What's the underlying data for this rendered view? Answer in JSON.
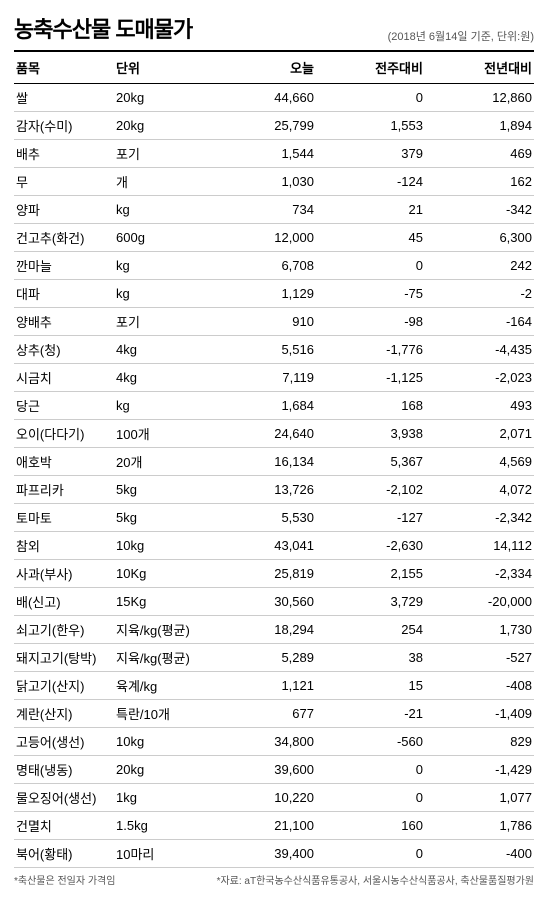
{
  "title": "농축수산물 도매물가",
  "meta": "(2018년 6월14일 기준, 단위:원)",
  "columns": [
    "품목",
    "단위",
    "오늘",
    "전주대비",
    "전년대비"
  ],
  "rows": [
    {
      "item": "쌀",
      "unit": "20kg",
      "today": "44,660",
      "week": "0",
      "year": "12,860"
    },
    {
      "item": "감자(수미)",
      "unit": "20kg",
      "today": "25,799",
      "week": "1,553",
      "year": "1,894"
    },
    {
      "item": "배추",
      "unit": "포기",
      "today": "1,544",
      "week": "379",
      "year": "469"
    },
    {
      "item": "무",
      "unit": "개",
      "today": "1,030",
      "week": "-124",
      "year": "162"
    },
    {
      "item": "양파",
      "unit": "kg",
      "today": "734",
      "week": "21",
      "year": "-342"
    },
    {
      "item": "건고추(화건)",
      "unit": "600g",
      "today": "12,000",
      "week": "45",
      "year": "6,300"
    },
    {
      "item": "깐마늘",
      "unit": "kg",
      "today": "6,708",
      "week": "0",
      "year": "242"
    },
    {
      "item": "대파",
      "unit": "kg",
      "today": "1,129",
      "week": "-75",
      "year": "-2"
    },
    {
      "item": "양배추",
      "unit": "포기",
      "today": "910",
      "week": "-98",
      "year": "-164"
    },
    {
      "item": "상추(청)",
      "unit": "4kg",
      "today": "5,516",
      "week": "-1,776",
      "year": "-4,435"
    },
    {
      "item": "시금치",
      "unit": "4kg",
      "today": "7,119",
      "week": "-1,125",
      "year": "-2,023"
    },
    {
      "item": "당근",
      "unit": "kg",
      "today": "1,684",
      "week": "168",
      "year": "493"
    },
    {
      "item": "오이(다다기)",
      "unit": "100개",
      "today": "24,640",
      "week": "3,938",
      "year": "2,071"
    },
    {
      "item": "애호박",
      "unit": "20개",
      "today": "16,134",
      "week": "5,367",
      "year": "4,569"
    },
    {
      "item": "파프리카",
      "unit": "5kg",
      "today": "13,726",
      "week": "-2,102",
      "year": "4,072"
    },
    {
      "item": "토마토",
      "unit": "5kg",
      "today": "5,530",
      "week": "-127",
      "year": "-2,342"
    },
    {
      "item": "참외",
      "unit": "10kg",
      "today": "43,041",
      "week": "-2,630",
      "year": "14,112"
    },
    {
      "item": "사과(부사)",
      "unit": "10Kg",
      "today": "25,819",
      "week": "2,155",
      "year": "-2,334"
    },
    {
      "item": "배(신고)",
      "unit": "15Kg",
      "today": "30,560",
      "week": "3,729",
      "year": "-20,000"
    },
    {
      "item": "쇠고기(한우)",
      "unit": "지육/kg(평균)",
      "today": "18,294",
      "week": "254",
      "year": "1,730"
    },
    {
      "item": "돼지고기(탕박)",
      "unit": "지육/kg(평균)",
      "today": "5,289",
      "week": "38",
      "year": "-527"
    },
    {
      "item": "닭고기(산지)",
      "unit": "육계/kg",
      "today": "1,121",
      "week": "15",
      "year": "-408"
    },
    {
      "item": "계란(산지)",
      "unit": "특란/10개",
      "today": "677",
      "week": "-21",
      "year": "-1,409"
    },
    {
      "item": "고등어(생선)",
      "unit": "10kg",
      "today": "34,800",
      "week": "-560",
      "year": "829"
    },
    {
      "item": "명태(냉동)",
      "unit": "20kg",
      "today": "39,600",
      "week": "0",
      "year": "-1,429"
    },
    {
      "item": "물오징어(생선)",
      "unit": "1kg",
      "today": "10,220",
      "week": "0",
      "year": "1,077"
    },
    {
      "item": "건멸치",
      "unit": "1.5kg",
      "today": "21,100",
      "week": "160",
      "year": "1,786"
    },
    {
      "item": "북어(황태)",
      "unit": "10마리",
      "today": "39,400",
      "week": "0",
      "year": "-400"
    }
  ],
  "footnote_left": "*축산물은 전일자 가격임",
  "footnote_right": "*자료: aT한국농수산식품유통공사, 서울시농수산식품공사, 축산물품질평가원"
}
